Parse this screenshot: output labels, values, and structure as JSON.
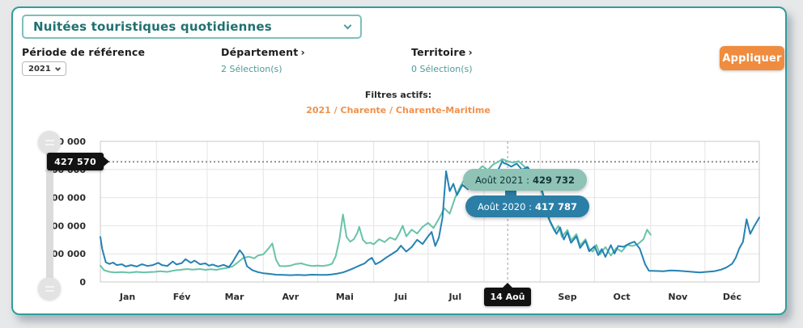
{
  "colors": {
    "panel_border": "#2f9e9a",
    "accent_orange": "#ef8c3f",
    "series_2021": "#68c3a9",
    "series_2020": "#2482b4",
    "tooltip_2021_bg": "#8ec3b6",
    "tooltip_2020_bg": "#2b7fa6",
    "marker_bg": "#121212"
  },
  "header": {
    "metric_dropdown_value": "Nuitées touristiques quotidiennes"
  },
  "filters": {
    "chevron_char": "›",
    "periode": {
      "label": "Période de référence",
      "value": "2021"
    },
    "departement": {
      "label": "Département",
      "selection": "2 Sélection(s)"
    },
    "territoire": {
      "label": "Territoire",
      "selection": "0 Sélection(s)"
    },
    "apply_label": "Appliquer",
    "active_title": "Filtres actifs:",
    "active_value": "2021 / Charente / Charente-Maritime"
  },
  "tooltip": {
    "line_2021": {
      "prefix": "Août 2021 :",
      "value": "429 732"
    },
    "line_2020": {
      "prefix": "Août 2020 :",
      "value": "417 787"
    }
  },
  "chart_data": {
    "type": "line",
    "title": "Nuitées touristiques quotidiennes",
    "x_unit": "day_of_year",
    "xlim": [
      1,
      365
    ],
    "ylim": [
      0,
      500000
    ],
    "grid": true,
    "legend": "none",
    "y_ticks": [
      {
        "value": 500000,
        "label": "500 000"
      },
      {
        "value": 400000,
        "label": "400 000"
      },
      {
        "value": 300000,
        "label": "300 000"
      },
      {
        "value": 200000,
        "label": "200 000"
      },
      {
        "value": 100000,
        "label": "100 000"
      },
      {
        "value": 0,
        "label": "0"
      }
    ],
    "x_ticks": [
      {
        "day": 16,
        "label": "Jan"
      },
      {
        "day": 46,
        "label": "Fév"
      },
      {
        "day": 75,
        "label": "Mar"
      },
      {
        "day": 106,
        "label": "Avr"
      },
      {
        "day": 136,
        "label": "Mai"
      },
      {
        "day": 167,
        "label": "Jui"
      },
      {
        "day": 197,
        "label": "Jul"
      },
      {
        "day": 259,
        "label": "Sep"
      },
      {
        "day": 289,
        "label": "Oct"
      },
      {
        "day": 320,
        "label": "Nov"
      },
      {
        "day": 350,
        "label": "Déc"
      }
    ],
    "month_gridline_days": [
      1,
      32,
      60,
      91,
      121,
      152,
      182,
      213,
      244,
      274,
      305,
      335,
      365
    ],
    "reference_line": {
      "value": 427570,
      "label": "427 570"
    },
    "marker_line": {
      "day": 226,
      "label": "14 Aoû"
    },
    "series": [
      {
        "name": "2021",
        "color": "#68c3a9",
        "points": [
          [
            1,
            58000
          ],
          [
            3,
            42000
          ],
          [
            6,
            36000
          ],
          [
            9,
            34000
          ],
          [
            13,
            35000
          ],
          [
            17,
            33000
          ],
          [
            21,
            36000
          ],
          [
            25,
            34000
          ],
          [
            28,
            35000
          ],
          [
            31,
            36000
          ],
          [
            34,
            38000
          ],
          [
            38,
            36000
          ],
          [
            42,
            41000
          ],
          [
            45,
            43000
          ],
          [
            49,
            46000
          ],
          [
            52,
            44000
          ],
          [
            56,
            46000
          ],
          [
            59,
            43000
          ],
          [
            62,
            45000
          ],
          [
            65,
            43000
          ],
          [
            68,
            47000
          ],
          [
            71,
            50000
          ],
          [
            74,
            55000
          ],
          [
            77,
            70000
          ],
          [
            80,
            86000
          ],
          [
            83,
            90000
          ],
          [
            86,
            84000
          ],
          [
            88,
            94000
          ],
          [
            91,
            98000
          ],
          [
            94,
            120000
          ],
          [
            96,
            137000
          ],
          [
            98,
            80000
          ],
          [
            100,
            57000
          ],
          [
            103,
            56000
          ],
          [
            106,
            58000
          ],
          [
            109,
            64000
          ],
          [
            112,
            66000
          ],
          [
            115,
            60000
          ],
          [
            118,
            57000
          ],
          [
            121,
            58000
          ],
          [
            124,
            57000
          ],
          [
            127,
            60000
          ],
          [
            129,
            65000
          ],
          [
            131,
            91000
          ],
          [
            133,
            150000
          ],
          [
            135,
            240000
          ],
          [
            137,
            160000
          ],
          [
            139,
            143000
          ],
          [
            141,
            152000
          ],
          [
            143,
            175000
          ],
          [
            144,
            196000
          ],
          [
            146,
            150000
          ],
          [
            148,
            137000
          ],
          [
            150,
            140000
          ],
          [
            152,
            134000
          ],
          [
            155,
            152000
          ],
          [
            158,
            142000
          ],
          [
            161,
            158000
          ],
          [
            164,
            150000
          ],
          [
            166,
            172000
          ],
          [
            168,
            200000
          ],
          [
            170,
            162000
          ],
          [
            173,
            186000
          ],
          [
            176,
            172000
          ],
          [
            179,
            196000
          ],
          [
            182,
            210000
          ],
          [
            185,
            192000
          ],
          [
            188,
            225000
          ],
          [
            191,
            262000
          ],
          [
            194,
            243000
          ],
          [
            197,
            300000
          ],
          [
            200,
            342000
          ],
          [
            203,
            372000
          ],
          [
            206,
            348000
          ],
          [
            209,
            392000
          ],
          [
            212,
            412000
          ],
          [
            215,
            398000
          ],
          [
            218,
            418000
          ],
          [
            221,
            428000
          ],
          [
            223,
            437000
          ],
          [
            226,
            429732
          ],
          [
            229,
            424000
          ],
          [
            232,
            430000
          ],
          [
            235,
            412000
          ],
          [
            238,
            394000
          ],
          [
            241,
            372000
          ],
          [
            244,
            336000
          ],
          [
            246,
            290000
          ],
          [
            248,
            235000
          ],
          [
            250,
            205000
          ],
          [
            252,
            180000
          ],
          [
            254,
            200000
          ],
          [
            256,
            160000
          ],
          [
            259,
            185000
          ],
          [
            261,
            148000
          ],
          [
            264,
            170000
          ],
          [
            266,
            130000
          ],
          [
            269,
            152000
          ],
          [
            271,
            118000
          ],
          [
            273,
            108000
          ],
          [
            275,
            132000
          ],
          [
            277,
            98000
          ],
          [
            280,
            124000
          ],
          [
            283,
            94000
          ],
          [
            286,
            120000
          ],
          [
            289,
            108000
          ],
          [
            292,
            132000
          ],
          [
            295,
            128000
          ],
          [
            298,
            135000
          ],
          [
            301,
            152000
          ],
          [
            303,
            186000
          ],
          [
            305,
            168000
          ]
        ]
      },
      {
        "name": "2020",
        "color": "#2482b4",
        "points": [
          [
            1,
            160000
          ],
          [
            2,
            118000
          ],
          [
            4,
            70000
          ],
          [
            6,
            64000
          ],
          [
            8,
            69000
          ],
          [
            10,
            60000
          ],
          [
            13,
            63000
          ],
          [
            15,
            55000
          ],
          [
            18,
            60000
          ],
          [
            21,
            55000
          ],
          [
            24,
            63000
          ],
          [
            27,
            57000
          ],
          [
            30,
            60000
          ],
          [
            33,
            68000
          ],
          [
            35,
            60000
          ],
          [
            38,
            57000
          ],
          [
            41,
            73000
          ],
          [
            43,
            62000
          ],
          [
            46,
            67000
          ],
          [
            48,
            81000
          ],
          [
            51,
            68000
          ],
          [
            53,
            76000
          ],
          [
            56,
            63000
          ],
          [
            59,
            66000
          ],
          [
            61,
            58000
          ],
          [
            63,
            62000
          ],
          [
            66,
            55000
          ],
          [
            69,
            61000
          ],
          [
            72,
            53000
          ],
          [
            74,
            70000
          ],
          [
            76,
            92000
          ],
          [
            78,
            113000
          ],
          [
            80,
            96000
          ],
          [
            82,
            56000
          ],
          [
            85,
            42000
          ],
          [
            88,
            35000
          ],
          [
            91,
            31000
          ],
          [
            94,
            29000
          ],
          [
            98,
            26000
          ],
          [
            102,
            25000
          ],
          [
            106,
            24000
          ],
          [
            110,
            25000
          ],
          [
            114,
            24000
          ],
          [
            118,
            26000
          ],
          [
            122,
            25000
          ],
          [
            126,
            25000
          ],
          [
            129,
            27000
          ],
          [
            132,
            30000
          ],
          [
            135,
            34000
          ],
          [
            138,
            41000
          ],
          [
            141,
            49000
          ],
          [
            144,
            58000
          ],
          [
            147,
            66000
          ],
          [
            149,
            78000
          ],
          [
            151,
            86000
          ],
          [
            153,
            63000
          ],
          [
            156,
            73000
          ],
          [
            159,
            87000
          ],
          [
            162,
            99000
          ],
          [
            165,
            112000
          ],
          [
            167,
            129000
          ],
          [
            170,
            108000
          ],
          [
            173,
            124000
          ],
          [
            176,
            150000
          ],
          [
            179,
            135000
          ],
          [
            182,
            162000
          ],
          [
            184,
            178000
          ],
          [
            186,
            128000
          ],
          [
            188,
            158000
          ],
          [
            190,
            230000
          ],
          [
            192,
            394000
          ],
          [
            194,
            323000
          ],
          [
            196,
            349000
          ],
          [
            198,
            309000
          ],
          [
            201,
            345000
          ],
          [
            204,
            330000
          ],
          [
            207,
            362000
          ],
          [
            210,
            336000
          ],
          [
            213,
            372000
          ],
          [
            216,
            348000
          ],
          [
            219,
            388000
          ],
          [
            221,
            402000
          ],
          [
            223,
            430000
          ],
          [
            224,
            422000
          ],
          [
            226,
            417787
          ],
          [
            228,
            410000
          ],
          [
            231,
            421000
          ],
          [
            234,
            399000
          ],
          [
            237,
            409000
          ],
          [
            240,
            379000
          ],
          [
            243,
            353000
          ],
          [
            245,
            326000
          ],
          [
            247,
            282000
          ],
          [
            249,
            222000
          ],
          [
            251,
            196000
          ],
          [
            253,
            171000
          ],
          [
            255,
            194000
          ],
          [
            257,
            151000
          ],
          [
            259,
            177000
          ],
          [
            261,
            139000
          ],
          [
            264,
            162000
          ],
          [
            266,
            121000
          ],
          [
            269,
            146000
          ],
          [
            271,
            109000
          ],
          [
            274,
            127000
          ],
          [
            276,
            95000
          ],
          [
            278,
            117000
          ],
          [
            280,
            89000
          ],
          [
            283,
            131000
          ],
          [
            285,
            101000
          ],
          [
            287,
            128000
          ],
          [
            290,
            125000
          ],
          [
            293,
            136000
          ],
          [
            296,
            143000
          ],
          [
            299,
            118000
          ],
          [
            302,
            62000
          ],
          [
            304,
            40000
          ],
          [
            308,
            39000
          ],
          [
            312,
            38000
          ],
          [
            316,
            41000
          ],
          [
            320,
            40000
          ],
          [
            324,
            38000
          ],
          [
            328,
            36000
          ],
          [
            332,
            34000
          ],
          [
            336,
            36000
          ],
          [
            340,
            38000
          ],
          [
            344,
            44000
          ],
          [
            347,
            52000
          ],
          [
            350,
            65000
          ],
          [
            352,
            86000
          ],
          [
            354,
            120000
          ],
          [
            356,
            143000
          ],
          [
            358,
            223000
          ],
          [
            360,
            171000
          ],
          [
            362,
            196000
          ],
          [
            365,
            229000
          ]
        ]
      }
    ]
  }
}
